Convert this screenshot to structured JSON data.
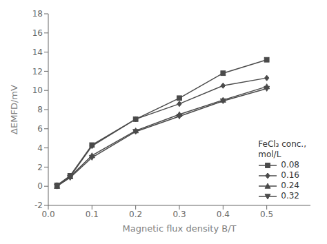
{
  "chart_data": {
    "type": "line",
    "xlabel": "Magnetic flux density B/T",
    "ylabel": "ΔEMFD/mV",
    "legend_title": "FeCl₃ conc.,\nmol/L",
    "x": [
      0.02,
      0.05,
      0.1,
      0.2,
      0.3,
      0.4,
      0.5
    ],
    "series": [
      {
        "name": "0.08",
        "values": [
          0.1,
          1.1,
          4.3,
          7.0,
          9.2,
          11.8,
          13.2
        ],
        "marker": "square",
        "color": "#4a4a4a"
      },
      {
        "name": "0.16",
        "values": [
          0.1,
          1.0,
          4.2,
          7.0,
          8.6,
          10.5,
          11.3
        ],
        "marker": "diamond",
        "color": "#4a4a4a"
      },
      {
        "name": "0.24",
        "values": [
          0.0,
          1.0,
          3.2,
          5.8,
          7.5,
          9.0,
          10.4
        ],
        "marker": "triangle-up",
        "color": "#4a4a4a"
      },
      {
        "name": "0.32",
        "values": [
          0.0,
          0.9,
          3.0,
          5.7,
          7.3,
          8.9,
          10.2
        ],
        "marker": "triangle-down",
        "color": "#4a4a4a"
      }
    ],
    "xlim": [
      0.0,
      0.6
    ],
    "ylim": [
      -2,
      18
    ],
    "xticks": [
      {
        "value": 0.0,
        "label": "0.0"
      },
      0.1,
      0.2,
      0.3,
      0.4,
      0.5
    ],
    "yticks": [
      -2,
      0,
      2,
      4,
      6,
      8,
      10,
      12,
      14,
      16,
      18
    ],
    "grid": false,
    "legend": "lower right"
  }
}
